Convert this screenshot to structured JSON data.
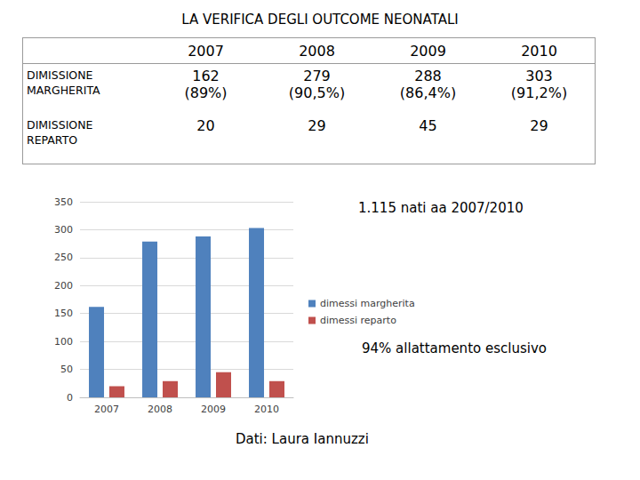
{
  "title": "LA VERIFICA DEGLI OUTCOME NEONATALI",
  "table": {
    "years": [
      "2007",
      "2008",
      "2009",
      "2010"
    ],
    "rows": [
      {
        "label": "DIMISSIONE MARGHERITA",
        "cells": [
          {
            "count": 162,
            "percent_label": "(89%)"
          },
          {
            "count": 279,
            "percent_label": "(90,5%)"
          },
          {
            "count": 288,
            "percent_label": "(86,4%)"
          },
          {
            "count": 303,
            "percent_label": "(91,2%)"
          }
        ]
      },
      {
        "label": "DIMISSIONE REPARTO",
        "cells": [
          {
            "count": 20
          },
          {
            "count": 29
          },
          {
            "count": 45
          },
          {
            "count": 29
          }
        ]
      }
    ]
  },
  "notes": [
    "1.115 nati aa 2007/2010",
    "94% allattamento esclusivo"
  ],
  "source": "Dati: Laura Iannuzzi",
  "chart_data": {
    "type": "bar",
    "categories": [
      "2007",
      "2008",
      "2009",
      "2010"
    ],
    "series": [
      {
        "name": "dimessi margherita",
        "color": "#4f81bd",
        "values": [
          162,
          279,
          288,
          303
        ]
      },
      {
        "name": "dimessi reparto",
        "color": "#c0504d",
        "values": [
          20,
          29,
          45,
          29
        ]
      }
    ],
    "ylim": [
      0,
      350
    ],
    "yticks": [
      0,
      50,
      100,
      150,
      200,
      250,
      300,
      350
    ],
    "grid": true,
    "legend": "right"
  }
}
